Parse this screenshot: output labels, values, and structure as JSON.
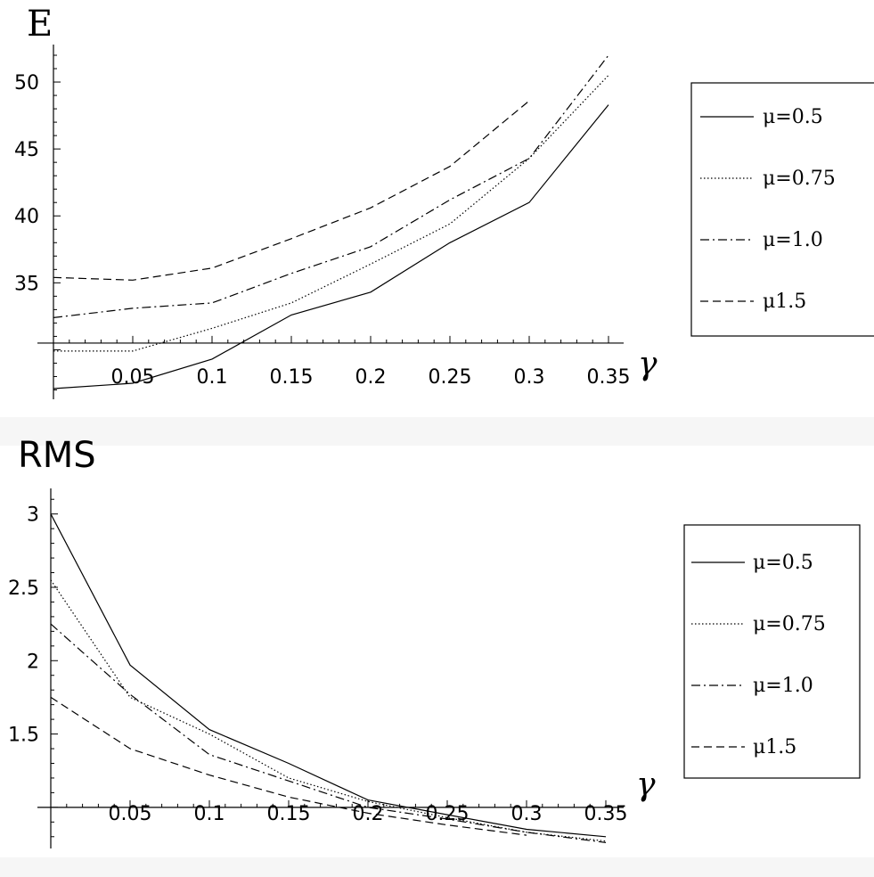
{
  "chart_data": [
    {
      "type": "line",
      "ylabel": "E",
      "xlabel": "γ",
      "x_ticks": [
        0.05,
        0.1,
        0.15,
        0.2,
        0.25,
        0.3,
        0.35
      ],
      "x_tick_labels": [
        "0.05",
        "0.1",
        "0.15",
        "0.2",
        "0.25",
        "0.3",
        "0.35"
      ],
      "y_ticks": [
        35,
        40,
        45,
        50
      ],
      "y_tick_labels": [
        "35",
        "40",
        "45",
        "50"
      ],
      "xlim": [
        0,
        0.35
      ],
      "ylim": [
        26.5,
        52
      ],
      "x_axis_crosses_at": 30.5,
      "grid": false,
      "legend_position": "right",
      "series": [
        {
          "name": "μ=0.5",
          "style": "solid",
          "points": [
            [
              0,
              27.1
            ],
            [
              0.05,
              27.5
            ],
            [
              0.1,
              29.3
            ],
            [
              0.15,
              32.6
            ],
            [
              0.2,
              34.3
            ],
            [
              0.25,
              38.0
            ],
            [
              0.3,
              41.0
            ],
            [
              0.35,
              48.3
            ]
          ]
        },
        {
          "name": "μ=0.75",
          "style": "dotted",
          "points": [
            [
              0,
              29.9
            ],
            [
              0.05,
              29.9
            ],
            [
              0.1,
              31.6
            ],
            [
              0.15,
              33.5
            ],
            [
              0.2,
              36.4
            ],
            [
              0.25,
              39.4
            ],
            [
              0.3,
              44.3
            ],
            [
              0.35,
              50.5
            ]
          ]
        },
        {
          "name": "μ=1.0",
          "style": "dashdot",
          "points": [
            [
              0,
              32.4
            ],
            [
              0.05,
              33.1
            ],
            [
              0.1,
              33.5
            ],
            [
              0.15,
              35.7
            ],
            [
              0.2,
              37.7
            ],
            [
              0.25,
              41.2
            ],
            [
              0.3,
              44.3
            ],
            [
              0.35,
              52.0
            ]
          ]
        },
        {
          "name": "μ1.5",
          "style": "dashed",
          "points": [
            [
              0,
              35.4
            ],
            [
              0.05,
              35.2
            ],
            [
              0.1,
              36.1
            ],
            [
              0.15,
              38.3
            ],
            [
              0.2,
              40.6
            ],
            [
              0.25,
              43.7
            ],
            [
              0.3,
              48.6
            ]
          ]
        }
      ]
    },
    {
      "type": "line",
      "ylabel": "RMS",
      "xlabel": "γ",
      "x_ticks": [
        0.05,
        0.1,
        0.15,
        0.2,
        0.25,
        0.3,
        0.35
      ],
      "x_tick_labels": [
        "0.05",
        "0.1",
        "0.15",
        "0.2",
        "0.25",
        "0.3",
        "0.35"
      ],
      "y_ticks": [
        1.5,
        2,
        2.5,
        3
      ],
      "y_tick_labels": [
        "1.5",
        "2",
        "2.5",
        "3"
      ],
      "xlim": [
        0,
        0.35
      ],
      "ylim": [
        0.75,
        3.15
      ],
      "x_axis_crosses_at": 1.0,
      "grid": false,
      "legend_position": "right",
      "series": [
        {
          "name": "μ=0.5",
          "style": "solid",
          "points": [
            [
              0,
              3.0
            ],
            [
              0.05,
              1.97
            ],
            [
              0.1,
              1.53
            ],
            [
              0.15,
              1.3
            ],
            [
              0.2,
              1.05
            ],
            [
              0.25,
              0.95
            ],
            [
              0.3,
              0.85
            ],
            [
              0.35,
              0.8
            ]
          ]
        },
        {
          "name": "μ=0.75",
          "style": "dotted",
          "points": [
            [
              0,
              2.55
            ],
            [
              0.05,
              1.75
            ],
            [
              0.1,
              1.5
            ],
            [
              0.15,
              1.2
            ],
            [
              0.2,
              1.04
            ],
            [
              0.25,
              0.93
            ],
            [
              0.3,
              0.83
            ],
            [
              0.35,
              0.77
            ]
          ]
        },
        {
          "name": "μ=1.0",
          "style": "dashdot",
          "points": [
            [
              0,
              2.25
            ],
            [
              0.05,
              1.77
            ],
            [
              0.1,
              1.36
            ],
            [
              0.15,
              1.18
            ],
            [
              0.2,
              1.0
            ],
            [
              0.25,
              0.92
            ],
            [
              0.3,
              0.83
            ],
            [
              0.35,
              0.76
            ]
          ]
        },
        {
          "name": "μ1.5",
          "style": "dashed",
          "points": [
            [
              0,
              1.75
            ],
            [
              0.05,
              1.4
            ],
            [
              0.1,
              1.22
            ],
            [
              0.15,
              1.07
            ],
            [
              0.2,
              0.96
            ],
            [
              0.25,
              0.88
            ],
            [
              0.3,
              0.81
            ]
          ]
        }
      ]
    }
  ]
}
